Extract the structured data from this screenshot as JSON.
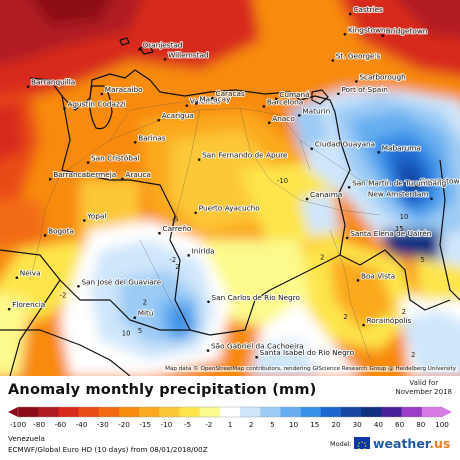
{
  "map": {
    "region": "Venezuela",
    "cities": [
      {
        "name": "Castries",
        "lon": -61.0,
        "lat": 14.01
      },
      {
        "name": "Kingstown",
        "lon": -61.23,
        "lat": 13.16
      },
      {
        "name": "Bridgetown",
        "lon": -59.61,
        "lat": 13.1
      },
      {
        "name": "St. George's",
        "lon": -61.75,
        "lat": 12.06
      },
      {
        "name": "Scarborough",
        "lon": -60.74,
        "lat": 11.18
      },
      {
        "name": "Port of Spain",
        "lon": -61.51,
        "lat": 10.66
      },
      {
        "name": "Oranjestad",
        "lon": -70.03,
        "lat": 12.52
      },
      {
        "name": "Willemstad",
        "lon": -68.93,
        "lat": 12.11
      },
      {
        "name": "Barranquilla",
        "lon": -74.8,
        "lat": 10.96
      },
      {
        "name": "Maracaibo",
        "lon": -71.64,
        "lat": 10.65
      },
      {
        "name": "Agustín Codazzi",
        "lon": -73.24,
        "lat": 10.04
      },
      {
        "name": "Valencia",
        "lon": -68.0,
        "lat": 10.16
      },
      {
        "name": "Maracay",
        "lon": -67.59,
        "lat": 10.25
      },
      {
        "name": "Caracas",
        "lon": -66.9,
        "lat": 10.48
      },
      {
        "name": "Barcelona",
        "lon": -64.7,
        "lat": 10.13
      },
      {
        "name": "Cumaná",
        "lon": -64.17,
        "lat": 10.45
      },
      {
        "name": "Maturín",
        "lon": -63.18,
        "lat": 9.75
      },
      {
        "name": "Anaco",
        "lon": -64.47,
        "lat": 9.44
      },
      {
        "name": "Acarigua",
        "lon": -69.2,
        "lat": 9.55
      },
      {
        "name": "Barinas",
        "lon": -70.21,
        "lat": 8.62
      },
      {
        "name": "San Fernando de Apure",
        "lon": -67.47,
        "lat": 7.89
      },
      {
        "name": "Ciudad Guayana",
        "lon": -62.65,
        "lat": 8.35
      },
      {
        "name": "Mabaruma",
        "lon": -59.78,
        "lat": 8.2
      },
      {
        "name": "Georgetown",
        "lon": -58.16,
        "lat": 6.8
      },
      {
        "name": "New Amsterdam",
        "lon": -57.52,
        "lat": 6.25
      },
      {
        "name": "San Cristóbal",
        "lon": -72.23,
        "lat": 7.77
      },
      {
        "name": "Barrancabermeja",
        "lon": -73.85,
        "lat": 7.07
      },
      {
        "name": "Arauca",
        "lon": -70.76,
        "lat": 7.08
      },
      {
        "name": "Canaima",
        "lon": -62.85,
        "lat": 6.24
      },
      {
        "name": "San Martín de Turumbang",
        "lon": -61.05,
        "lat": 6.73
      },
      {
        "name": "Puerto Ayacucho",
        "lon": -67.62,
        "lat": 5.66
      },
      {
        "name": "Santa Elena de Uairén",
        "lon": -61.13,
        "lat": 4.6
      },
      {
        "name": "Yopal",
        "lon": -72.39,
        "lat": 5.34
      },
      {
        "name": "Bogota",
        "lon": -74.07,
        "lat": 4.71
      },
      {
        "name": "Carreño",
        "lon": -69.17,
        "lat": 4.8
      },
      {
        "name": "Inírida",
        "lon": -67.92,
        "lat": 3.87
      },
      {
        "name": "Boa Vista",
        "lon": -60.67,
        "lat": 2.82
      },
      {
        "name": "San José del Guaviare",
        "lon": -72.64,
        "lat": 2.57
      },
      {
        "name": "San Carlos de Río Negro",
        "lon": -67.07,
        "lat": 1.92
      },
      {
        "name": "Mitú",
        "lon": -70.23,
        "lat": 1.25
      },
      {
        "name": "Rorainópolis",
        "lon": -60.43,
        "lat": 0.94
      },
      {
        "name": "São Gabriel da Cachoeira",
        "lon": -67.09,
        "lat": -0.13
      },
      {
        "name": "Santa Isabel do Rio Negro",
        "lon": -65.01,
        "lat": -0.41
      },
      {
        "name": "Neiva",
        "lon": -75.28,
        "lat": 2.93
      },
      {
        "name": "Florencia",
        "lon": -75.61,
        "lat": 1.61
      }
    ],
    "contour_labels": [
      {
        "text": "-10",
        "lon": -63.9,
        "lat": 6.9
      },
      {
        "text": "-5",
        "lon": -68.5,
        "lat": 5.3
      },
      {
        "text": "-2",
        "lon": -68.6,
        "lat": 3.6
      },
      {
        "text": "-2",
        "lon": -73.3,
        "lat": 2.1
      },
      {
        "text": "-2",
        "lon": -76.3,
        "lat": 1.5
      },
      {
        "text": "2",
        "lon": -69.8,
        "lat": 1.8
      },
      {
        "text": "2",
        "lon": -68.4,
        "lat": 3.3
      },
      {
        "text": "2",
        "lon": -62.2,
        "lat": 3.7
      },
      {
        "text": "2",
        "lon": -61.2,
        "lat": 1.2
      },
      {
        "text": "2",
        "lon": -58.7,
        "lat": 1.4
      },
      {
        "text": "2",
        "lon": -58.3,
        "lat": -0.4
      },
      {
        "text": "5",
        "lon": -70.0,
        "lat": 0.6
      },
      {
        "text": "10",
        "lon": -70.6,
        "lat": 0.5
      },
      {
        "text": "10",
        "lon": -58.7,
        "lat": 5.4
      },
      {
        "text": "15",
        "lon": -58.9,
        "lat": 4.9
      },
      {
        "text": "5",
        "lon": -57.9,
        "lat": 3.6
      }
    ],
    "attribution": "Map data © OpenStreetMap contributors, rendering GIScience Research Group @ Heidelberg University"
  },
  "legend": {
    "title": "Anomaly monthly precipitation (mm)",
    "valid_for_label": "Valid for",
    "valid_for_value": "November 2018",
    "ticks": [
      "-100",
      "-80",
      "-60",
      "-40",
      "-30",
      "-20",
      "-15",
      "-10",
      "-5",
      "-2",
      "1",
      "2",
      "5",
      "10",
      "15",
      "20",
      "30",
      "40",
      "60",
      "80",
      "100"
    ],
    "colors": [
      "#8b0b18",
      "#b01a20",
      "#d8291e",
      "#ea4b17",
      "#f36a13",
      "#f88a10",
      "#fba91f",
      "#fdc837",
      "#fde54b",
      "#fcfa8c",
      "#ffffff",
      "#cfe6fb",
      "#9ccbf5",
      "#66aef0",
      "#378fe8",
      "#1b67cf",
      "#1546a4",
      "#0f2f80",
      "#4a1f9c",
      "#9a3cc7",
      "#d97ae6"
    ]
  },
  "footer": {
    "line1": "Venezuela",
    "line2": "ECMWF/Global Euro HD (10 days) from 08/01/2018/00Z",
    "model_label": "Model:",
    "brand_name": "weather",
    "brand_tld": ".us"
  }
}
